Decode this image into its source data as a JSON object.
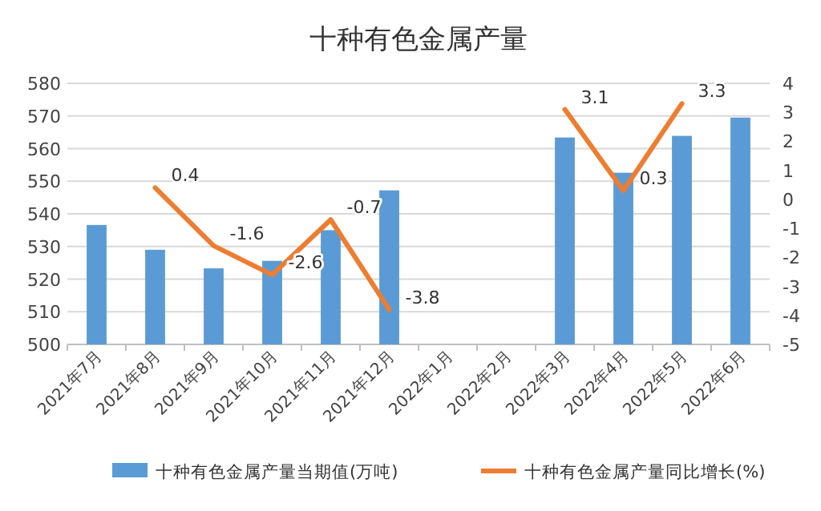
{
  "chart_data": {
    "type": "bar",
    "title": "十种有色金属产量",
    "categories": [
      "2021年7月",
      "2021年8月",
      "2021年9月",
      "2021年10月",
      "2021年11月",
      "2021年12月",
      "2022年1月",
      "2022年2月",
      "2022年3月",
      "2022年4月",
      "2022年5月",
      "2022年6月"
    ],
    "series": [
      {
        "name": "十种有色金属产量当期值(万吨)",
        "color": "#5b9bd5",
        "values": [
          536.6,
          529,
          523.3,
          525.6,
          535,
          547.2,
          null,
          null,
          563.4,
          552.6,
          563.9,
          569.5
        ]
      },
      {
        "name": "十种有色金属产量同比增长(%)",
        "type": "line",
        "axis": "y2",
        "color": "#ed7d31",
        "values": [
          null,
          0.4,
          -1.6,
          -2.6,
          -0.7,
          -3.8,
          null,
          null,
          3.1,
          0.3,
          3.3,
          null
        ],
        "value_labels": [
          null,
          "0.4",
          "-1.6",
          "-2.6",
          "-0.7",
          "-3.8",
          null,
          null,
          "3.1",
          "0.3",
          "3.3",
          null
        ]
      }
    ],
    "ylim": [
      500,
      580
    ],
    "yticks": [
      500,
      510,
      520,
      530,
      540,
      550,
      560,
      570,
      580
    ],
    "y2lim": [
      -5,
      4
    ],
    "y2ticks": [
      -5,
      -4,
      -3,
      -2,
      -1,
      0,
      1,
      2,
      3,
      4
    ],
    "grid": "y",
    "legend": "bottom"
  }
}
